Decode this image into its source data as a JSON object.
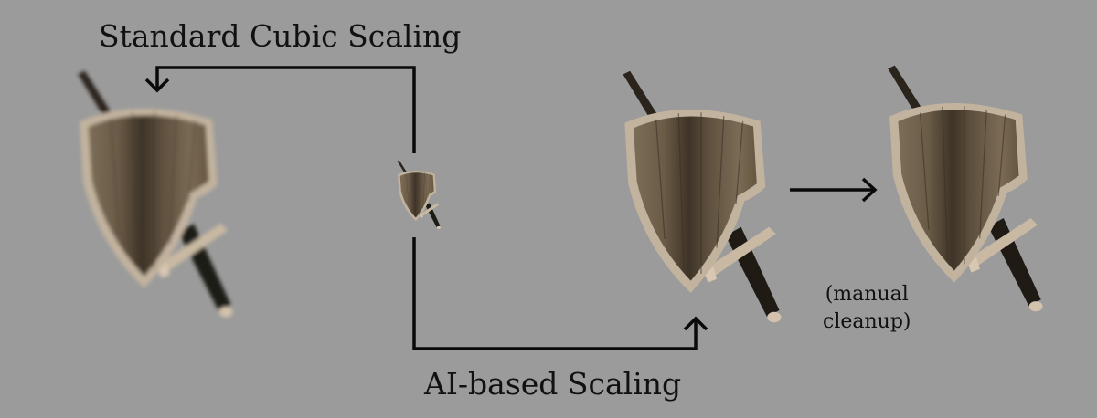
{
  "labels": {
    "standard_cubic": "Standard Cubic Scaling",
    "ai_based": "AI-based Scaling",
    "manual_line1": "(manual",
    "manual_line2": "cleanup)"
  },
  "figures": [
    {
      "name": "shield-sword-cubic",
      "description_icon": "shield-sword-icon"
    },
    {
      "name": "shield-sword-original",
      "description_icon": "shield-sword-icon"
    },
    {
      "name": "shield-sword-ai",
      "description_icon": "shield-sword-icon"
    },
    {
      "name": "shield-sword-cleanup",
      "description_icon": "shield-sword-icon"
    }
  ],
  "colors": {
    "background": "#9b9b9b",
    "wood_dark": "#3f3528",
    "wood_mid": "#6e5f4b",
    "wood_light": "#8d7c63",
    "rim": "#b9aa95",
    "blade": "#2a241d",
    "arrow": "#0a0a0a"
  }
}
